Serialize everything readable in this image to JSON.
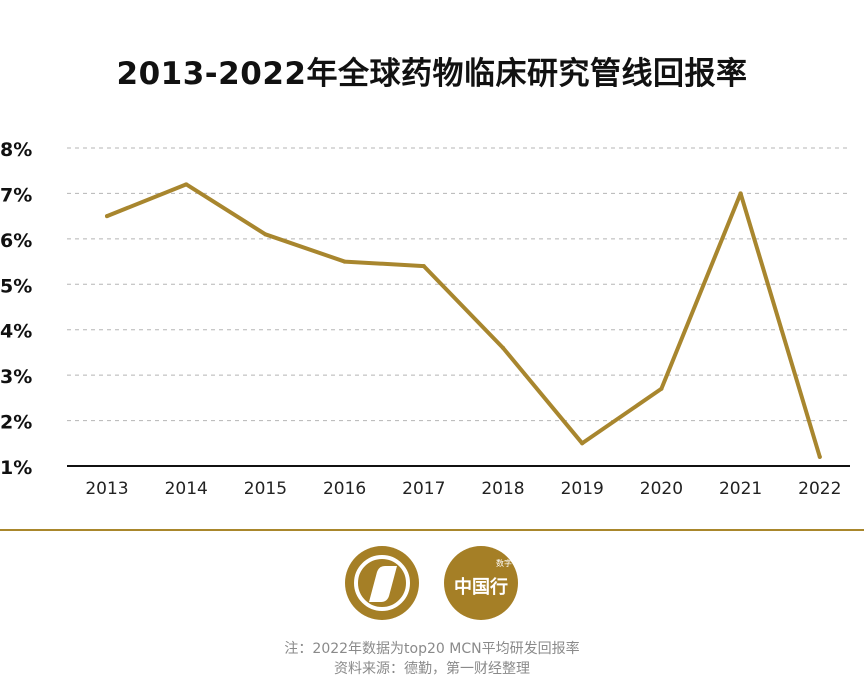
{
  "chart_data": {
    "type": "line",
    "title": "2013-2022年全球药物临床研究管线回报率",
    "xlabel": "",
    "ylabel": "",
    "categories": [
      "2013",
      "2014",
      "2015",
      "2016",
      "2017",
      "2018",
      "2019",
      "2020",
      "2021",
      "2022"
    ],
    "series": [
      {
        "values": [
          6.5,
          7.2,
          6.1,
          5.5,
          5.4,
          3.6,
          1.5,
          2.7,
          7.0,
          1.2
        ]
      }
    ],
    "y_ticks": [
      "1%",
      "2%",
      "3%",
      "4%",
      "5%",
      "6%",
      "7%",
      "8%"
    ],
    "ylim": [
      1,
      8
    ],
    "grid": true,
    "legend": "none",
    "line_color": "#a8862e"
  },
  "footer": {
    "note": "注：2022年数据为top20 MCN平均研发回报率",
    "source": "资料来源：德勤，第一财经整理"
  },
  "logos": {
    "left_icon": "diamond-logo-icon",
    "right_icon": "seal-logo-icon",
    "right_text": "中国行",
    "right_small_text": "数字"
  }
}
